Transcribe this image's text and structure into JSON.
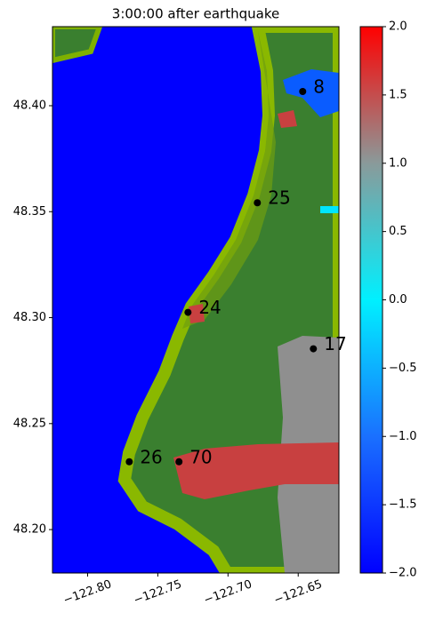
{
  "chart_data": {
    "type": "map",
    "title": "3:00:00 after earthquake",
    "xlim": [
      -122.825,
      -122.621
    ],
    "ylim": [
      48.1795,
      48.4373
    ],
    "xticks": [
      {
        "value": -122.8,
        "label": "−122.80"
      },
      {
        "value": -122.75,
        "label": "−122.75"
      },
      {
        "value": -122.7,
        "label": "−122.70"
      },
      {
        "value": -122.65,
        "label": "−122.65"
      }
    ],
    "yticks": [
      {
        "value": 48.2,
        "label": "48.20"
      },
      {
        "value": 48.25,
        "label": "48.25"
      },
      {
        "value": 48.3,
        "label": "48.30"
      },
      {
        "value": 48.35,
        "label": "48.35"
      },
      {
        "value": 48.4,
        "label": "48.40"
      }
    ],
    "gauges": [
      {
        "name": "8",
        "x": -122.6468,
        "y": 48.4067
      },
      {
        "name": "25",
        "x": -122.6791,
        "y": 48.3542
      },
      {
        "name": "24",
        "x": -122.7285,
        "y": 48.3025
      },
      {
        "name": "17",
        "x": -122.6392,
        "y": 48.2853
      },
      {
        "name": "26",
        "x": -122.7703,
        "y": 48.232
      },
      {
        "name": "70",
        "x": -122.7349,
        "y": 48.232
      }
    ],
    "colorbar": {
      "lim": [
        -2,
        2
      ],
      "colors": [
        "#0000ff",
        "#1a70ff",
        "#00f0ff",
        "#8a9a9a",
        "#ff0000"
      ],
      "ticks": [
        {
          "value": -2,
          "label": "−2.0"
        },
        {
          "value": -1.5,
          "label": "−1.5"
        },
        {
          "value": -1,
          "label": "−1.0"
        },
        {
          "value": -0.5,
          "label": "−0.5"
        },
        {
          "value": 0,
          "label": "0.0"
        },
        {
          "value": 0.5,
          "label": "0.5"
        },
        {
          "value": 1,
          "label": "1.0"
        },
        {
          "value": 1.5,
          "label": "1.5"
        },
        {
          "value": 2,
          "label": "2.0"
        }
      ]
    }
  }
}
